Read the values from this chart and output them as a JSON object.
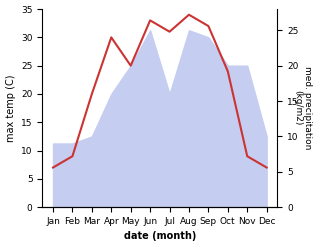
{
  "months": [
    "Jan",
    "Feb",
    "Mar",
    "Apr",
    "May",
    "Jun",
    "Jul",
    "Aug",
    "Sep",
    "Oct",
    "Nov",
    "Dec"
  ],
  "temp": [
    7,
    9,
    20,
    30,
    25,
    33,
    31,
    34,
    32,
    24,
    9,
    7
  ],
  "precip_raw": [
    9,
    9,
    10,
    16,
    20,
    25,
    16,
    25,
    24,
    20,
    20,
    10
  ],
  "temp_color": "#cc3333",
  "precip_color": "#c5cdf0",
  "ylabel_left": "max temp (C)",
  "ylabel_right": "med. precipitation\n(kg/m2)",
  "xlabel": "date (month)",
  "ylim_left": [
    0,
    35
  ],
  "ylim_right": [
    0,
    28
  ],
  "yticks_left": [
    0,
    5,
    10,
    15,
    20,
    25,
    30,
    35
  ],
  "yticks_right": [
    0,
    5,
    10,
    15,
    20,
    25
  ],
  "precip_scale_factor": 1.4,
  "background_color": "#ffffff",
  "fig_width": 3.18,
  "fig_height": 2.47,
  "dpi": 100
}
